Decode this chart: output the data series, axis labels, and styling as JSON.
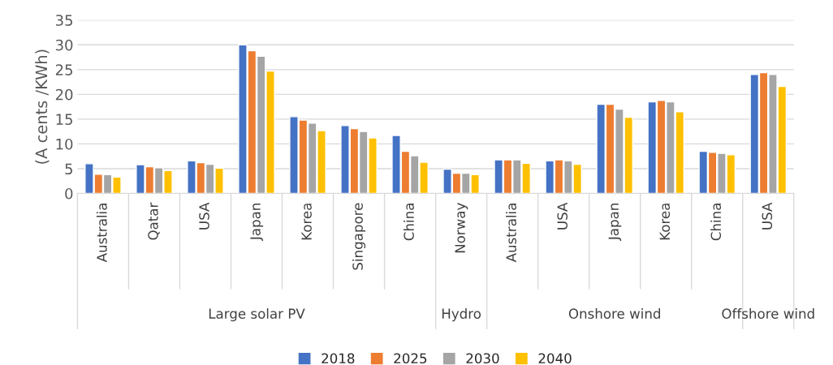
{
  "chart_data": {
    "type": "bar",
    "ylabel": "(A cents /KWh)",
    "categories": [
      "Australia",
      "Qatar",
      "USA",
      "Japan",
      "Korea",
      "Singapore",
      "China",
      "Norway",
      "Australia",
      "USA",
      "Japan",
      "Korea",
      "China",
      "USA"
    ],
    "series": [
      {
        "name": "2018",
        "color": "#4472c4",
        "values": [
          6.0,
          5.8,
          6.6,
          30.0,
          15.5,
          13.7,
          11.7,
          4.9,
          6.8,
          6.6,
          18.0,
          18.5,
          8.5,
          24.0
        ]
      },
      {
        "name": "2025",
        "color": "#ed7d31",
        "values": [
          3.9,
          5.4,
          6.2,
          28.8,
          14.8,
          13.1,
          8.5,
          4.1,
          6.8,
          6.8,
          18.0,
          18.8,
          8.3,
          24.4
        ]
      },
      {
        "name": "2030",
        "color": "#a5a5a5",
        "values": [
          3.8,
          5.2,
          5.9,
          27.7,
          14.2,
          12.5,
          7.6,
          4.1,
          6.8,
          6.6,
          17.0,
          18.5,
          8.1,
          24.0
        ]
      },
      {
        "name": "2040",
        "color": "#ffc000",
        "values": [
          3.3,
          4.6,
          5.1,
          24.7,
          12.7,
          11.2,
          6.3,
          3.8,
          6.1,
          5.9,
          15.4,
          16.5,
          7.8,
          21.6
        ]
      }
    ],
    "annotations": [
      "Large solar PV",
      "Hydro",
      "Onshore wind",
      "Offshore wind"
    ],
    "ylim": [
      0,
      35
    ],
    "yticks": [
      0,
      5,
      10,
      15,
      20,
      25,
      30,
      35
    ],
    "grid": "y",
    "legend": "bottom"
  }
}
